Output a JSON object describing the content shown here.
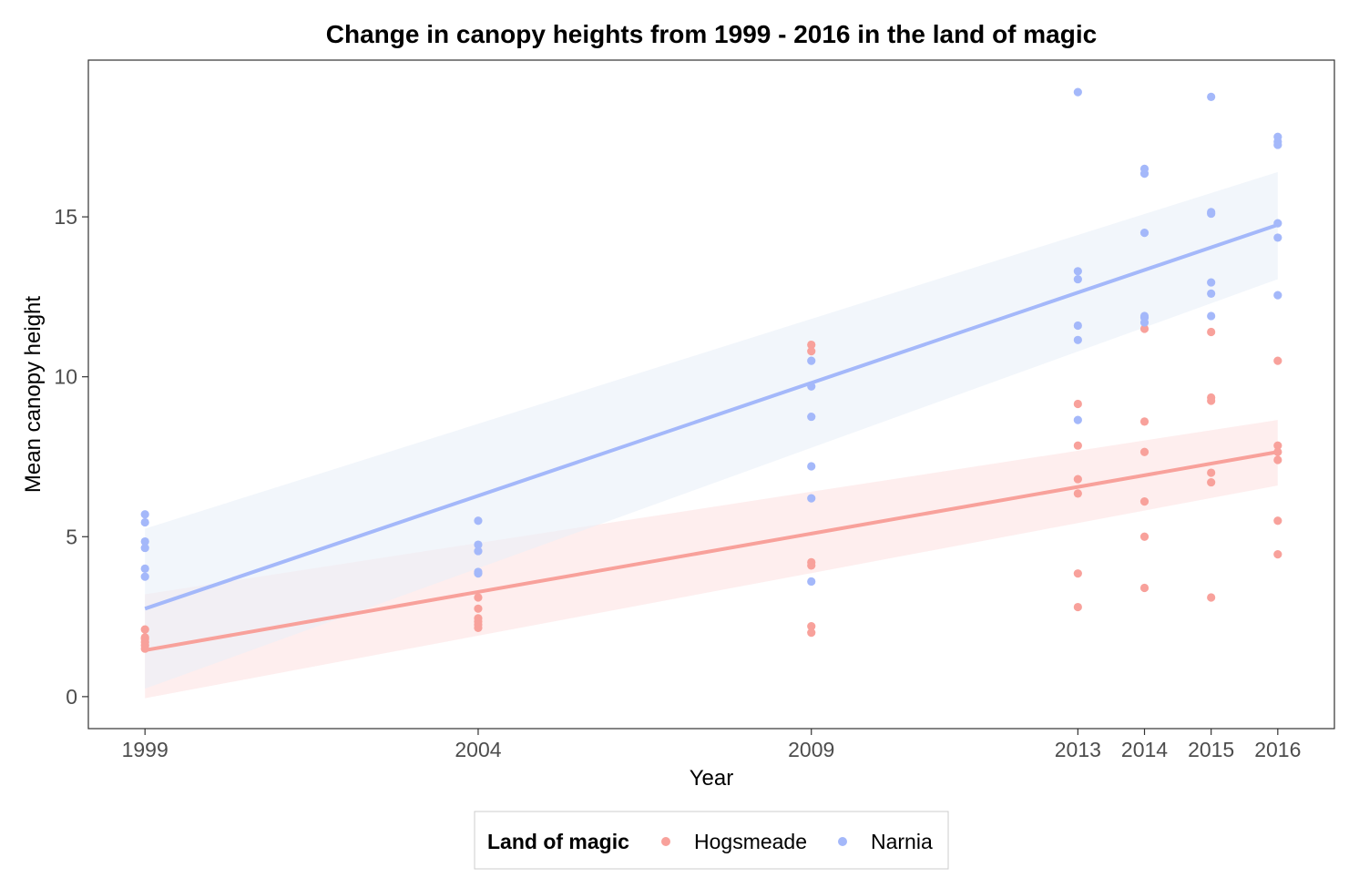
{
  "chart_data": {
    "type": "scatter",
    "title": "Change in canopy heights from 1999 - 2016 in the land of magic",
    "xlabel": "Year",
    "ylabel": "Mean canopy height",
    "x_ticks": [
      1999,
      2004,
      2009,
      2013,
      2014,
      2015,
      2016
    ],
    "x_tick_labels": [
      "1999",
      "2004",
      "2009",
      "2013",
      "2014",
      "2015",
      "2016"
    ],
    "y_ticks": [
      0,
      5,
      10,
      15
    ],
    "y_tick_labels": [
      "0",
      "5",
      "10",
      "15"
    ],
    "xlim": [
      1998.15,
      2016.85
    ],
    "ylim": [
      -1.0,
      19.9
    ],
    "grid": false,
    "legend": {
      "title": "Land of magic",
      "position": "bottom",
      "entries": [
        "Hogsmeade",
        "Narnia"
      ]
    },
    "series": [
      {
        "name": "Hogsmeade",
        "color": "#F8A19B",
        "points": [
          [
            1999,
            2.1
          ],
          [
            1999,
            1.85
          ],
          [
            1999,
            1.8
          ],
          [
            1999,
            1.7
          ],
          [
            1999,
            1.6
          ],
          [
            1999,
            1.5
          ],
          [
            2004,
            3.1
          ],
          [
            2004,
            2.75
          ],
          [
            2004,
            2.45
          ],
          [
            2004,
            2.35
          ],
          [
            2004,
            2.25
          ],
          [
            2004,
            2.15
          ],
          [
            2009,
            11.0
          ],
          [
            2009,
            10.8
          ],
          [
            2009,
            4.2
          ],
          [
            2009,
            4.1
          ],
          [
            2009,
            2.2
          ],
          [
            2009,
            2.0
          ],
          [
            2013,
            9.15
          ],
          [
            2013,
            7.85
          ],
          [
            2013,
            6.8
          ],
          [
            2013,
            6.35
          ],
          [
            2013,
            3.85
          ],
          [
            2013,
            2.8
          ],
          [
            2014,
            11.5
          ],
          [
            2014,
            8.6
          ],
          [
            2014,
            7.65
          ],
          [
            2014,
            6.1
          ],
          [
            2014,
            5.0
          ],
          [
            2014,
            3.4
          ],
          [
            2015,
            11.4
          ],
          [
            2015,
            9.35
          ],
          [
            2015,
            9.25
          ],
          [
            2015,
            7.0
          ],
          [
            2015,
            6.7
          ],
          [
            2015,
            3.1
          ],
          [
            2016,
            10.5
          ],
          [
            2016,
            7.85
          ],
          [
            2016,
            7.65
          ],
          [
            2016,
            7.4
          ],
          [
            2016,
            5.5
          ],
          [
            2016,
            4.45
          ]
        ],
        "trend": {
          "x": [
            1999,
            2016
          ],
          "y": [
            1.45,
            7.65
          ]
        },
        "band": {
          "x": [
            1999,
            2016
          ],
          "lower": [
            -0.05,
            6.6
          ],
          "upper": [
            3.2,
            8.65
          ]
        }
      },
      {
        "name": "Narnia",
        "color": "#A4B8FA",
        "points": [
          [
            1999,
            5.7
          ],
          [
            1999,
            5.45
          ],
          [
            1999,
            4.85
          ],
          [
            1999,
            4.65
          ],
          [
            1999,
            4.0
          ],
          [
            1999,
            3.75
          ],
          [
            2004,
            5.5
          ],
          [
            2004,
            4.75
          ],
          [
            2004,
            4.55
          ],
          [
            2004,
            3.9
          ],
          [
            2004,
            3.85
          ],
          [
            2009,
            10.5
          ],
          [
            2009,
            9.7
          ],
          [
            2009,
            8.75
          ],
          [
            2009,
            7.2
          ],
          [
            2009,
            6.2
          ],
          [
            2009,
            3.6
          ],
          [
            2013,
            18.9
          ],
          [
            2013,
            13.3
          ],
          [
            2013,
            13.05
          ],
          [
            2013,
            11.6
          ],
          [
            2013,
            11.15
          ],
          [
            2013,
            8.65
          ],
          [
            2014,
            16.5
          ],
          [
            2014,
            16.35
          ],
          [
            2014,
            14.5
          ],
          [
            2014,
            11.9
          ],
          [
            2014,
            11.85
          ],
          [
            2014,
            11.7
          ],
          [
            2015,
            18.75
          ],
          [
            2015,
            15.15
          ],
          [
            2015,
            15.1
          ],
          [
            2015,
            12.95
          ],
          [
            2015,
            12.6
          ],
          [
            2015,
            11.9
          ],
          [
            2016,
            17.5
          ],
          [
            2016,
            17.35
          ],
          [
            2016,
            17.25
          ],
          [
            2016,
            14.8
          ],
          [
            2016,
            14.35
          ],
          [
            2016,
            12.55
          ]
        ],
        "trend": {
          "x": [
            1999,
            2016
          ],
          "y": [
            2.75,
            14.75
          ]
        },
        "band": {
          "x": [
            1999,
            2016
          ],
          "lower": [
            0.25,
            13.05
          ],
          "upper": [
            5.25,
            16.4
          ]
        }
      }
    ]
  }
}
